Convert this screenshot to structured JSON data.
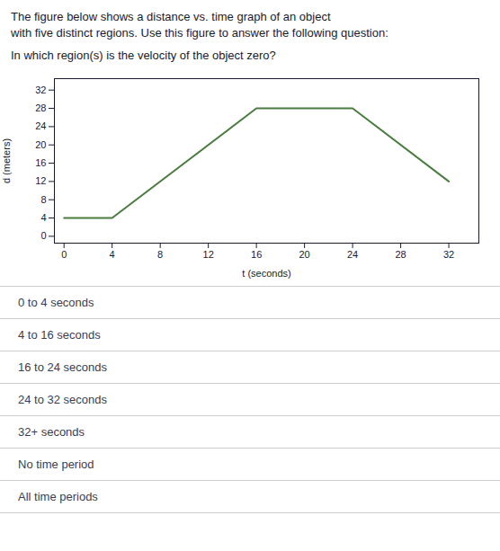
{
  "chart_data": {
    "type": "line",
    "title": "The figure below shows a distance vs. time graph of an object\nwith five distinct regions. Use this figure to answer the following question:",
    "subtitle": "In which region(s) is the velocity of the object zero?",
    "x": [
      0,
      4,
      16,
      24,
      32
    ],
    "values": [
      4,
      4,
      28,
      28,
      12
    ],
    "color": "#4a7c3f",
    "xlabel": "t (seconds)",
    "ylabel": "d (meters)",
    "xlim": [
      -0.8,
      34.5
    ],
    "ylim": [
      -1.5,
      34.5
    ],
    "xticks": [
      0,
      4,
      8,
      12,
      16,
      20,
      24,
      28,
      32
    ],
    "yticks": [
      0,
      4,
      8,
      12,
      16,
      20,
      24,
      28,
      32
    ],
    "grid": false,
    "annotations": [
      "0 to 4 seconds",
      "4 to 16 seconds",
      "16 to 24 seconds",
      "24 to 32 seconds",
      "32+ seconds",
      "No time period",
      "All time periods"
    ]
  }
}
